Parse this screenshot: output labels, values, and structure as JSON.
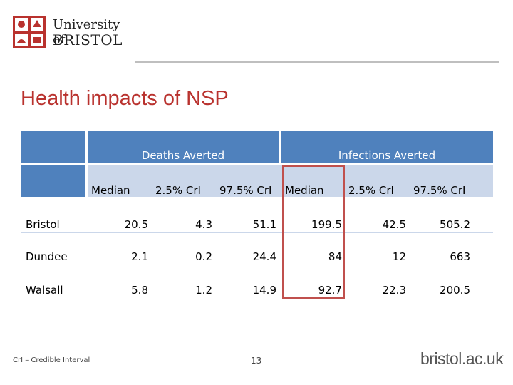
{
  "header": {
    "logo_line1": "University of",
    "logo_line2": "BRISTOL",
    "brand_color": "#b9322e"
  },
  "slide": {
    "title": "Health impacts of NSP"
  },
  "table": {
    "groups": [
      "Deaths Averted",
      "Infections Averted"
    ],
    "columns": [
      "Median",
      "2.5% CrI",
      "97.5% CrI",
      "Median",
      "2.5% CrI",
      "97.5% CrI"
    ],
    "rows": [
      {
        "label": "Bristol",
        "values": [
          "20.5",
          "4.3",
          "51.1",
          "199.5",
          "42.5",
          "505.2"
        ]
      },
      {
        "label": "Dundee",
        "values": [
          "2.1",
          "0.2",
          "24.4",
          "84",
          "12",
          "663"
        ]
      },
      {
        "label": "Walsall",
        "values": [
          "5.8",
          "1.2",
          "14.9",
          "92.7",
          "22.3",
          "200.5"
        ]
      }
    ],
    "header_color": "#4f81bd",
    "highlight_color": "#c0504d"
  },
  "footer": {
    "footnote": "CrI – Credible Interval",
    "page_number": "13",
    "site": "bristol.ac.uk"
  }
}
